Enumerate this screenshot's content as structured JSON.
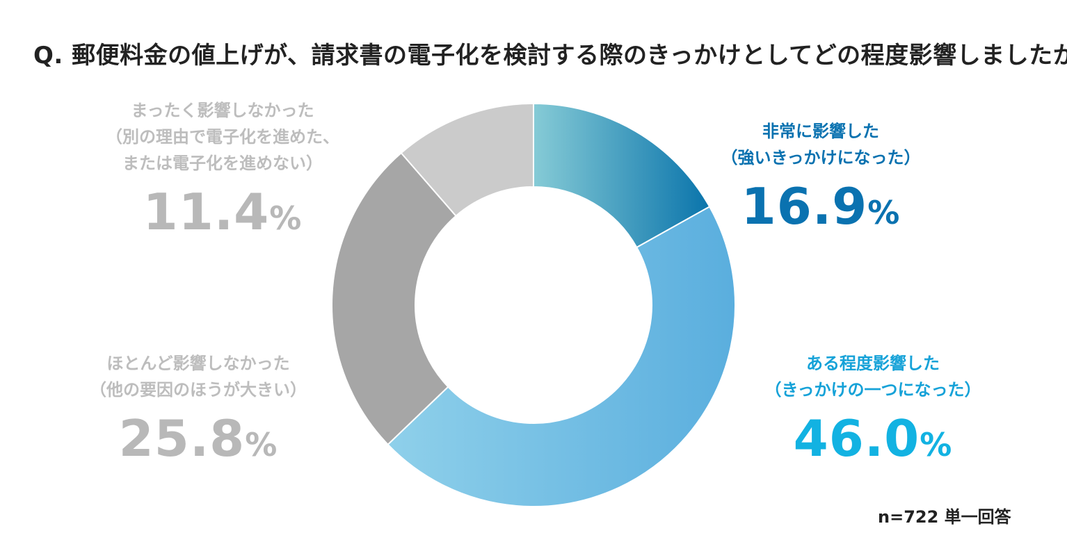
{
  "title": "Q. 郵便料金の値上げが、請求書の電子化を検討する際のきっかけとしてどの程度影響しましたか",
  "note": "n=722 単一回答",
  "labels": {
    "strong": {
      "line1": "非常に影響した",
      "line2": "（強いきっかけになった）",
      "value": "16.9",
      "unit": "%"
    },
    "some": {
      "line1": "ある程度影響した",
      "line2": "（きっかけの一つになった）",
      "value": "46.0",
      "unit": "%"
    },
    "little": {
      "line1": "ほとんど影響しなかった",
      "line2": "（他の要因のほうが大きい）",
      "value": "25.8",
      "unit": "%"
    },
    "none": {
      "line1": "まったく影響しなかった",
      "line2": "（別の理由で電子化を進めた、",
      "line3": "または電子化を進めない）",
      "value": "11.4",
      "unit": "%"
    }
  },
  "chart_data": {
    "type": "pie",
    "donut": true,
    "title": "Q. 郵便料金の値上げが、請求書の電子化を検討する際のきっかけとしてどの程度影響しましたか",
    "categories": [
      "非常に影響した",
      "ある程度影響した",
      "ほとんど影響しなかった",
      "まったく影響しなかった"
    ],
    "values": [
      16.9,
      46.0,
      25.8,
      11.4
    ],
    "unit": "%",
    "start": "12 o'clock",
    "direction": "clockwise",
    "colors": [
      {
        "from": "#86cbd6",
        "to": "#0a74ab"
      },
      {
        "from": "#8fd0ea",
        "to": "#5aaede"
      },
      {
        "from": "#a6a6a6",
        "to": "#a6a6a6"
      },
      {
        "from": "#cbcbcb",
        "to": "#cbcbcb"
      }
    ],
    "n": 722,
    "answer_type": "単一回答"
  }
}
